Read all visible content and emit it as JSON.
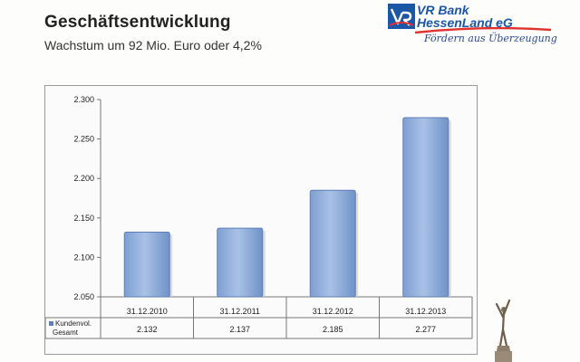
{
  "header": {
    "title": "Geschäftsentwicklung",
    "subtitle": "Wachstum um 92 Mio. Euro oder 4,2%"
  },
  "logo": {
    "line1": "VR Bank",
    "line2": "HessenLand eG",
    "slogan": "Fördern aus Überzeugung",
    "brand_color": "#1b57a6",
    "accent_color": "#e0312e"
  },
  "chart_data": {
    "type": "bar",
    "categories": [
      "31.12.2010",
      "31.12.2011",
      "31.12.2012",
      "31.12.2013"
    ],
    "series": [
      {
        "name": "Kundenvol. Gesamt",
        "values": [
          2132,
          2137,
          2185,
          2277
        ]
      }
    ],
    "value_labels": [
      "2.132",
      "2.137",
      "2.185",
      "2.277"
    ],
    "ylim": [
      2050,
      2300
    ],
    "yticks": [
      2050,
      2100,
      2150,
      2200,
      2250,
      2300
    ],
    "ytick_labels": [
      "2.050",
      "2.100",
      "2.150",
      "2.200",
      "2.250",
      "2.300"
    ],
    "grid": false,
    "data_table": true,
    "legend_key_lines": [
      "Kundenvol.",
      "Gesamt"
    ],
    "bar_color": "#8faedb",
    "bar_edge_color": "#5d7fb6"
  }
}
